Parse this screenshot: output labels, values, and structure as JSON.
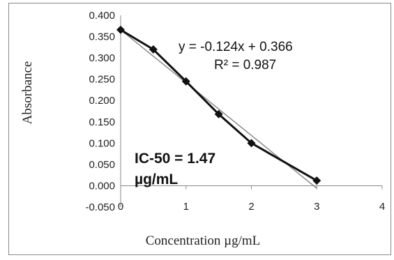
{
  "chart_data": {
    "type": "scatter",
    "title": "",
    "xlabel": "Concentration µg/mL",
    "ylabel": "Absorbance",
    "xlim": [
      0,
      4
    ],
    "ylim": [
      -0.05,
      0.4
    ],
    "x_ticks": [
      "0",
      "1",
      "2",
      "3",
      "4"
    ],
    "y_ticks": [
      "0.400",
      "0.350",
      "0.300",
      "0.250",
      "0.200",
      "0.150",
      "0.100",
      "0.050",
      "0.000",
      "-0.050"
    ],
    "grid": false,
    "series": [
      {
        "x": [
          0,
          0.5,
          1,
          1.5,
          2,
          3
        ],
        "y": [
          0.366,
          0.32,
          0.245,
          0.168,
          0.1,
          0.012
        ],
        "color": "#111111",
        "marker": "diamond"
      }
    ],
    "trendline": {
      "slope": -0.124,
      "intercept": 0.366,
      "x_range": [
        0,
        3
      ],
      "color": "#888888"
    },
    "annotations": {
      "equation": "y = -0.124x + 0.366",
      "r_squared": "R² = 0.987",
      "ic50_line1": "IC-50 = 1.47",
      "ic50_line2": "µg/mL"
    }
  }
}
